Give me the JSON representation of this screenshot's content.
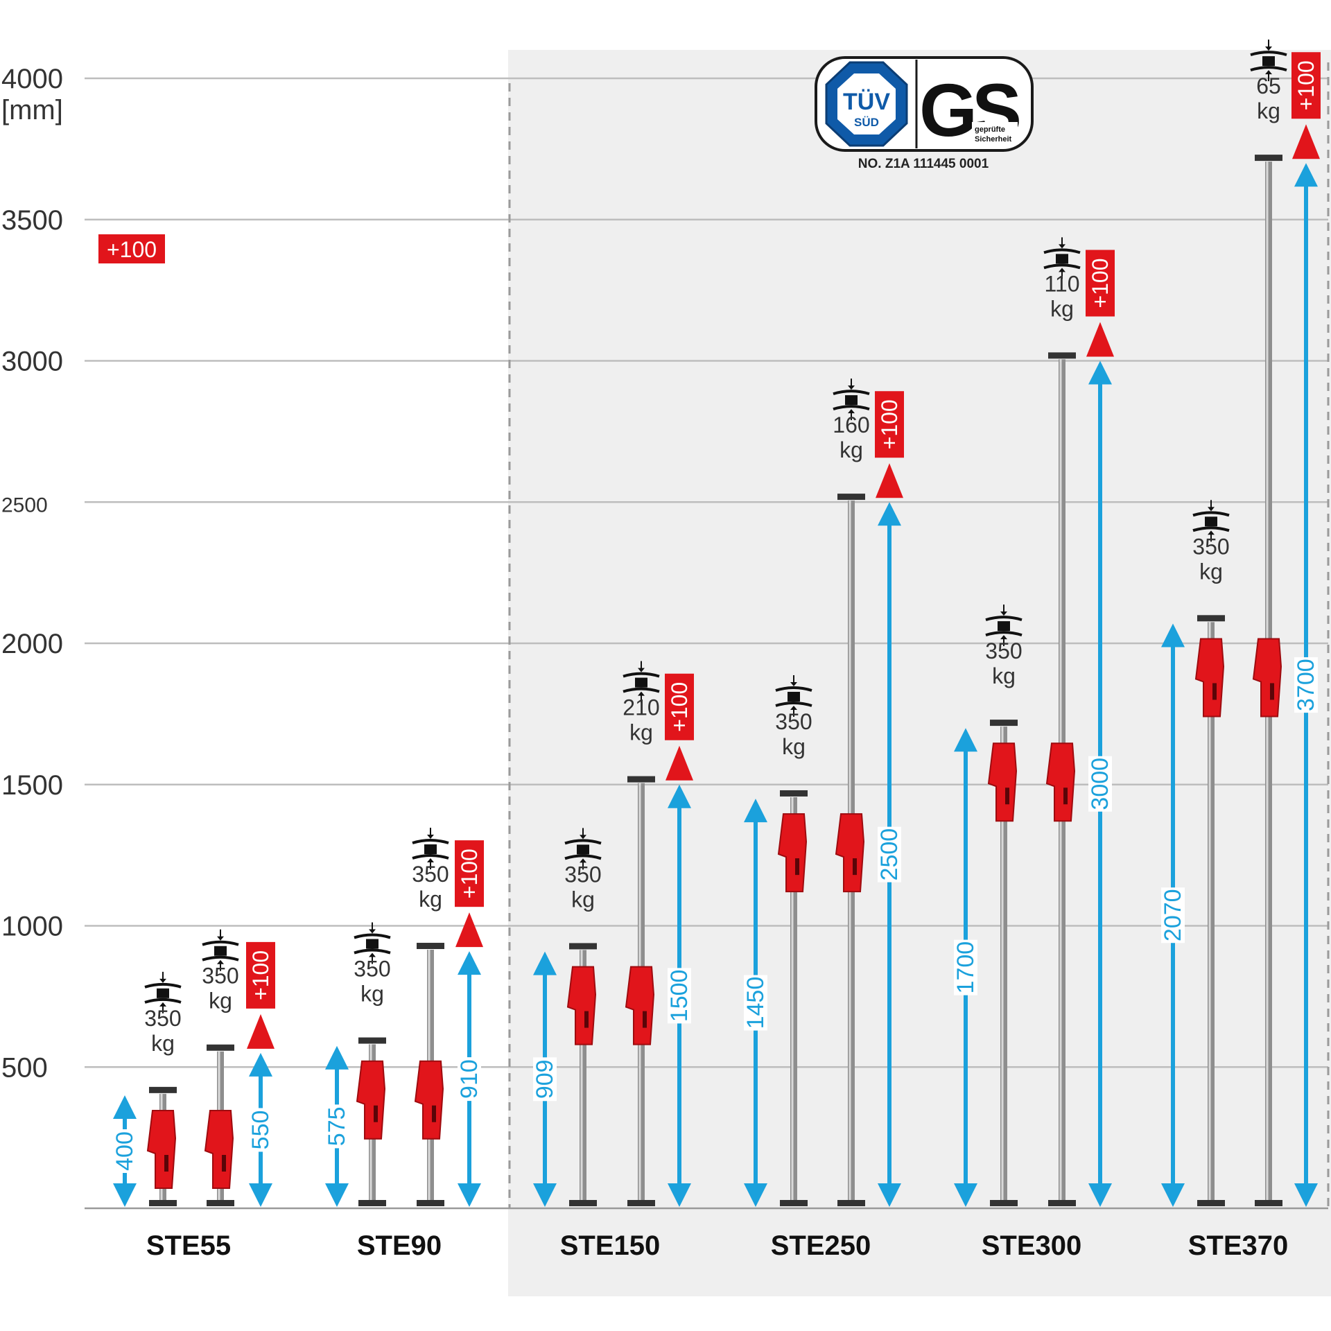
{
  "chart_data": {
    "type": "bar",
    "ylabel": "[mm]",
    "y_ticks": [
      4000,
      3500,
      3000,
      2500,
      2000,
      1500,
      1000,
      500
    ],
    "ylim": [
      0,
      4000
    ],
    "legend_badge": "+100",
    "badge_label": "+100",
    "load_unit": "kg",
    "colors": {
      "blue": "#1ba1dc",
      "red": "#e1151b",
      "grid": "#bdbdbd",
      "panel": "#efefef",
      "text": "#333333"
    },
    "certification": {
      "tuv_line1": "TÜV",
      "tuv_line2": "SÜD",
      "gs": "GS",
      "gs_sub1": "geprüfte",
      "gs_sub2": "Sicherheit",
      "number": "NO. Z1A 111445 0001"
    },
    "models": [
      {
        "name": "STE55",
        "props": [
          {
            "min_height": 400,
            "load": "350",
            "extension": null
          },
          {
            "max_height": 550,
            "load": "350",
            "extension": "+100"
          }
        ]
      },
      {
        "name": "STE90",
        "props": [
          {
            "min_height": 575,
            "load": "350",
            "extension": null
          },
          {
            "max_height": 910,
            "load": "350",
            "extension": "+100"
          }
        ]
      },
      {
        "name": "STE150",
        "props": [
          {
            "min_height": 909,
            "load": "350",
            "extension": null
          },
          {
            "max_height": 1500,
            "load": "210",
            "extension": "+100"
          }
        ]
      },
      {
        "name": "STE250",
        "props": [
          {
            "min_height": 1450,
            "load": "350",
            "extension": null
          },
          {
            "max_height": 2500,
            "load": "160",
            "extension": "+100"
          }
        ]
      },
      {
        "name": "STE300",
        "props": [
          {
            "min_height": 1700,
            "load": "350",
            "extension": null
          },
          {
            "max_height": 3000,
            "load": "110",
            "extension": "+100"
          }
        ]
      },
      {
        "name": "STE370",
        "props": [
          {
            "min_height": 2070,
            "load": "350",
            "extension": null
          },
          {
            "max_height": 3700,
            "load": "65",
            "extension": "+100"
          }
        ]
      }
    ]
  }
}
